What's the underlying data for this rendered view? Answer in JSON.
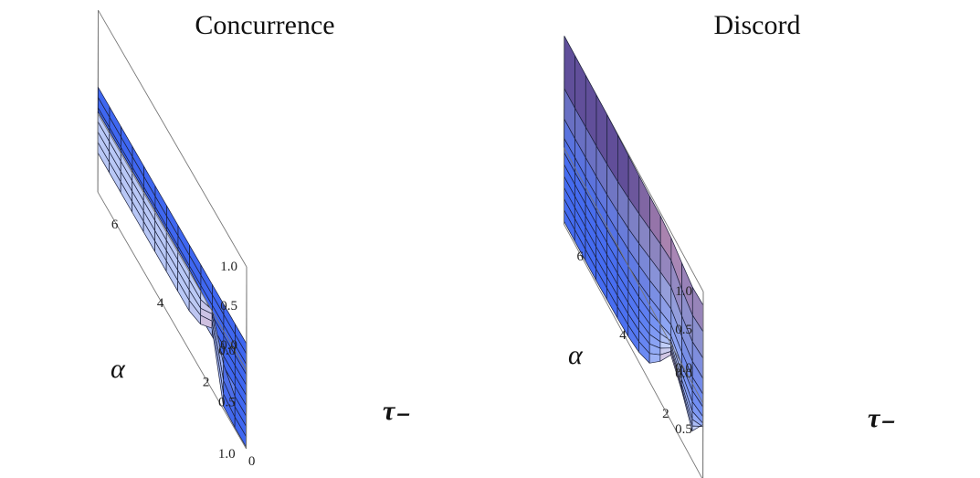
{
  "chart_data": [
    {
      "type": "surface3d",
      "title": "Concurrence",
      "xlabel": "τ₋",
      "ylabel": "α",
      "xlim": [
        0,
        6.5
      ],
      "ylim": [
        0,
        1
      ],
      "zlim": [
        0,
        1
      ],
      "x_ticks": [
        "0",
        "2",
        "4",
        "6"
      ],
      "y_ticks": [
        "0.0",
        "0.5",
        "1.0"
      ],
      "z_ticks": [
        "0.0",
        "0.5",
        "1.0"
      ],
      "surface": {
        "alpha": [
          0,
          0.1,
          0.2,
          0.3,
          0.4,
          0.5,
          0.6,
          0.7,
          0.8,
          0.9,
          1.0
        ],
        "tau": [
          0,
          0.5,
          1.0,
          1.5,
          2.0,
          2.5,
          3.0,
          3.5,
          4.0,
          4.5,
          5.0,
          5.5,
          6.0,
          6.5
        ],
        "z": [
          [
            0.02,
            0.02,
            0.02,
            0.02,
            0.02,
            0.02,
            0.02,
            0.02,
            0.02,
            0.02,
            0.02,
            0.02,
            0.02,
            0.02
          ],
          [
            0.02,
            0.02,
            0.02,
            0.02,
            0.02,
            0.02,
            0.02,
            0.02,
            0.02,
            0.02,
            0.02,
            0.02,
            0.02,
            0.02
          ],
          [
            0.02,
            0.02,
            0.02,
            0.02,
            0.02,
            0.02,
            0.02,
            0.02,
            0.02,
            0.02,
            0.02,
            0.02,
            0.02,
            0.02
          ],
          [
            0.02,
            0.02,
            0.02,
            0.02,
            0.02,
            0.02,
            0.02,
            0.02,
            0.02,
            0.02,
            0.02,
            0.02,
            0.02,
            0.02
          ],
          [
            0.02,
            0.02,
            0.02,
            0.02,
            0.02,
            0.02,
            0.02,
            0.02,
            0.02,
            0.02,
            0.02,
            0.02,
            0.02,
            0.02
          ],
          [
            0.02,
            0.02,
            0.02,
            0.02,
            0.02,
            0.02,
            0.02,
            0.02,
            0.02,
            0.02,
            0.02,
            0.02,
            0.02,
            0.02
          ],
          [
            0.02,
            0.02,
            0.02,
            0.45,
            0.48,
            0.5,
            0.5,
            0.5,
            0.5,
            0.5,
            0.5,
            0.5,
            0.5,
            0.5
          ],
          [
            0.02,
            0.02,
            0.18,
            0.62,
            0.5,
            0.5,
            0.5,
            0.5,
            0.5,
            0.5,
            0.5,
            0.5,
            0.5,
            0.5
          ],
          [
            0.02,
            0.02,
            0.1,
            0.7,
            0.52,
            0.5,
            0.5,
            0.5,
            0.5,
            0.5,
            0.5,
            0.5,
            0.5,
            0.5
          ],
          [
            0.02,
            0.02,
            0.06,
            0.74,
            0.56,
            0.5,
            0.5,
            0.5,
            0.5,
            0.5,
            0.5,
            0.5,
            0.5,
            0.5
          ],
          [
            0.02,
            0.02,
            0.04,
            0.78,
            0.58,
            0.5,
            0.5,
            0.5,
            0.5,
            0.5,
            0.5,
            0.5,
            0.5,
            0.5
          ]
        ]
      }
    },
    {
      "type": "surface3d",
      "title": "Discord",
      "xlabel": "τ₋",
      "ylabel": "α",
      "xlim": [
        0,
        6.5
      ],
      "ylim": [
        0,
        1
      ],
      "zlim": [
        0,
        1
      ],
      "x_ticks": [
        "0",
        "2",
        "4",
        "6"
      ],
      "y_ticks": [
        "0.0",
        "0.5",
        "1.0"
      ],
      "z_ticks": [
        "0.0",
        "0.5",
        "1.0"
      ],
      "surface": {
        "alpha": [
          0,
          0.1,
          0.2,
          0.3,
          0.4,
          0.5,
          0.6,
          0.7,
          0.8,
          0.9,
          1.0
        ],
        "tau": [
          0,
          0.5,
          1.0,
          1.5,
          2.0,
          2.5,
          3.0,
          3.5,
          4.0,
          4.5,
          5.0,
          5.5,
          6.0,
          6.5
        ],
        "z": [
          [
            0.82,
            0.8,
            0.86,
            0.93,
            0.96,
            0.96,
            0.97,
            0.98,
            0.99,
            1.0,
            1.0,
            1.0,
            1.0,
            1.0
          ],
          [
            0.62,
            0.58,
            0.66,
            0.78,
            0.74,
            0.68,
            0.62,
            0.57,
            0.53,
            0.5,
            0.48,
            0.47,
            0.46,
            0.46
          ],
          [
            0.42,
            0.38,
            0.46,
            0.58,
            0.52,
            0.45,
            0.38,
            0.32,
            0.28,
            0.25,
            0.23,
            0.22,
            0.21,
            0.21
          ],
          [
            0.3,
            0.27,
            0.34,
            0.44,
            0.38,
            0.3,
            0.24,
            0.19,
            0.16,
            0.14,
            0.12,
            0.11,
            0.11,
            0.1
          ],
          [
            0.24,
            0.21,
            0.28,
            0.38,
            0.3,
            0.22,
            0.16,
            0.12,
            0.1,
            0.08,
            0.07,
            0.07,
            0.06,
            0.06
          ],
          [
            0.22,
            0.18,
            0.26,
            0.38,
            0.28,
            0.18,
            0.12,
            0.09,
            0.07,
            0.06,
            0.05,
            0.05,
            0.05,
            0.05
          ],
          [
            0.24,
            0.18,
            0.3,
            0.46,
            0.3,
            0.17,
            0.11,
            0.08,
            0.06,
            0.05,
            0.05,
            0.04,
            0.04,
            0.04
          ],
          [
            0.3,
            0.2,
            0.36,
            0.56,
            0.34,
            0.18,
            0.11,
            0.08,
            0.06,
            0.05,
            0.04,
            0.04,
            0.04,
            0.04
          ],
          [
            0.4,
            0.24,
            0.44,
            0.66,
            0.4,
            0.2,
            0.12,
            0.08,
            0.06,
            0.05,
            0.04,
            0.04,
            0.04,
            0.04
          ],
          [
            0.55,
            0.3,
            0.54,
            0.76,
            0.46,
            0.22,
            0.12,
            0.08,
            0.06,
            0.05,
            0.04,
            0.04,
            0.04,
            0.04
          ],
          [
            0.72,
            0.38,
            0.66,
            0.86,
            0.52,
            0.24,
            0.13,
            0.08,
            0.06,
            0.05,
            0.04,
            0.04,
            0.04,
            0.04
          ]
        ]
      }
    }
  ],
  "colors": {
    "surface_low": "#3a63f0",
    "surface_mid": "#b9c8f6",
    "surface_high": "#f2a3ae",
    "surface_shadow": "#3a2c86",
    "mesh": "#1a1f3a",
    "box": "#777777"
  }
}
